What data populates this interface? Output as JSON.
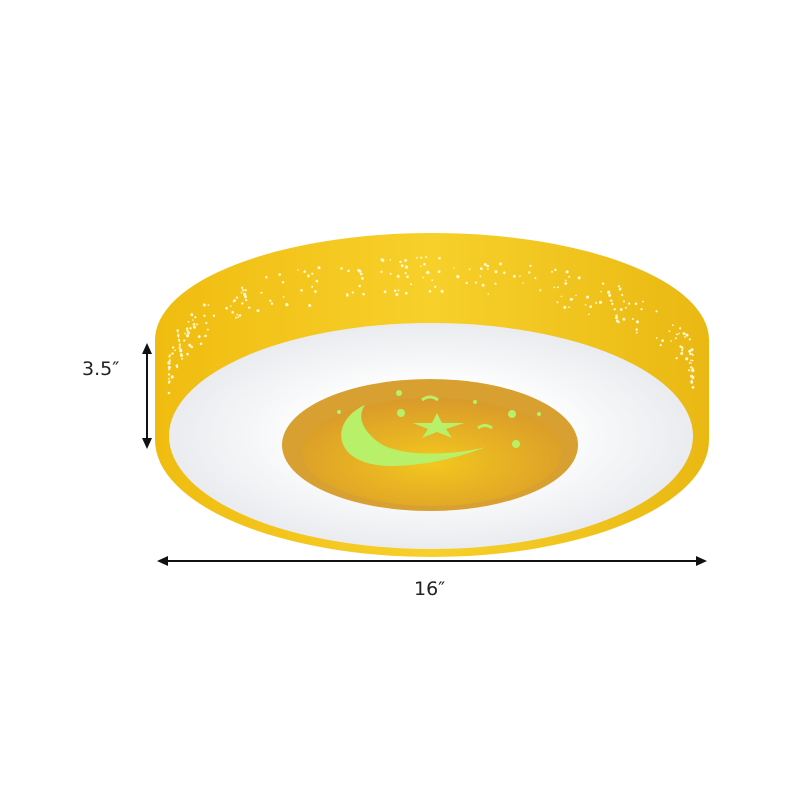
{
  "product": {
    "body_color": "#f2c318",
    "face_color": "#f4f5f7",
    "center_color": "#e3a82a",
    "glow_color": "#b8f06a",
    "center_motifs": [
      "moon-icon",
      "star-icon"
    ]
  },
  "dimensions": {
    "height_label": "3.5″",
    "width_label": "16″"
  }
}
